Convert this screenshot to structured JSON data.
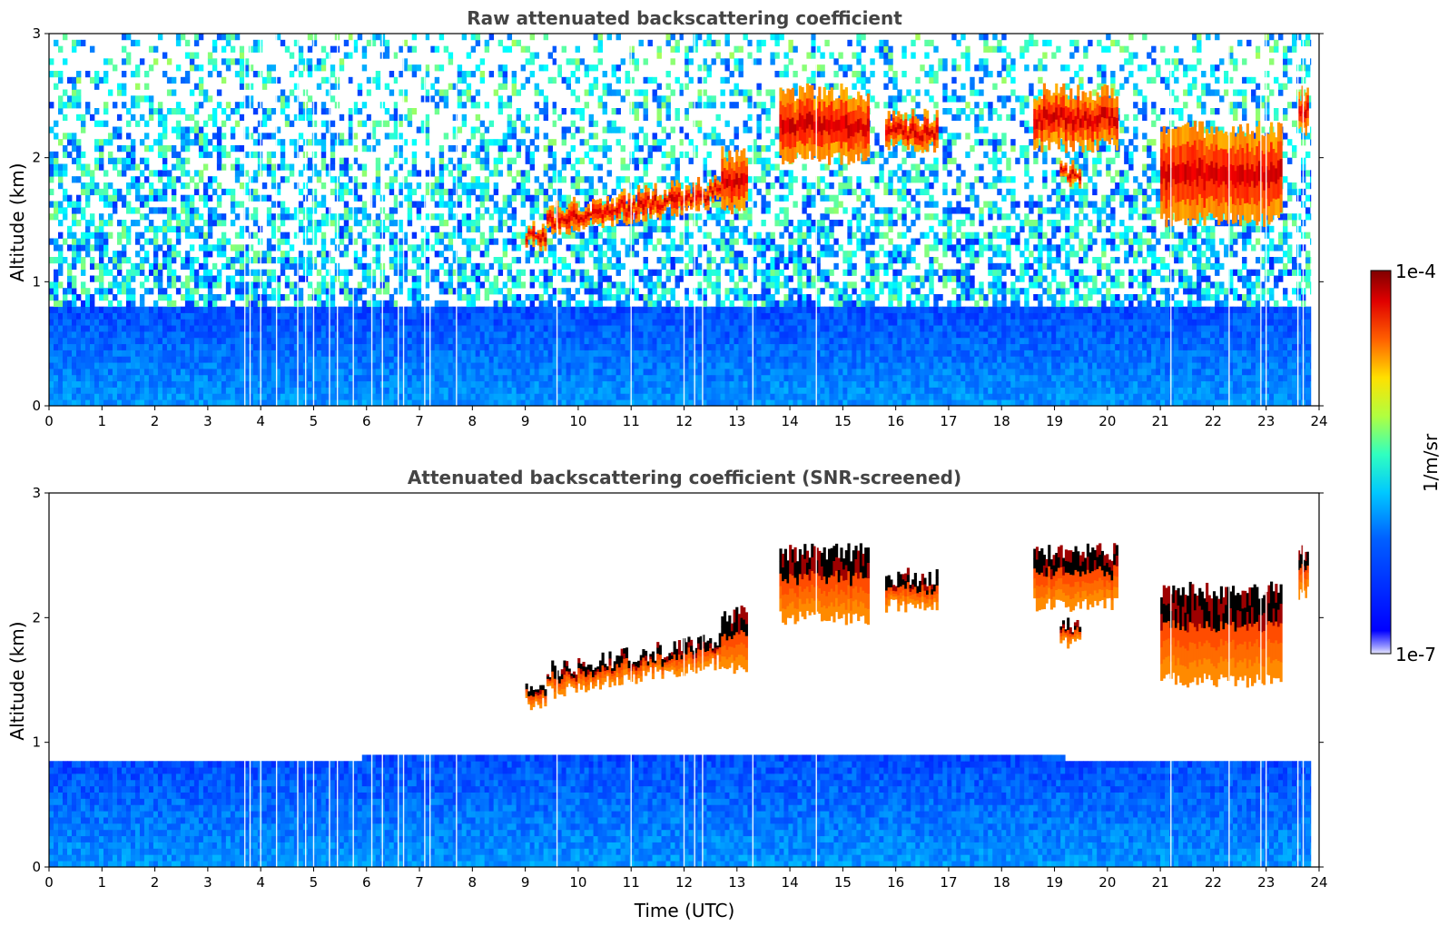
{
  "chart_data": [
    {
      "type": "heatmap",
      "title": "Raw attenuated backscattering coefficient",
      "xlabel": "",
      "ylabel": "Altitude (km)",
      "xlim": [
        0,
        24
      ],
      "ylim": [
        0,
        3
      ],
      "xticks": [
        "0",
        "1",
        "2",
        "3",
        "4",
        "5",
        "6",
        "7",
        "8",
        "9",
        "10",
        "11",
        "12",
        "13",
        "14",
        "15",
        "16",
        "17",
        "18",
        "19",
        "20",
        "21",
        "22",
        "23",
        "24"
      ],
      "yticks": [
        "0",
        "1",
        "2",
        "3"
      ],
      "screened": false,
      "boundary_layer_top_km": 0.8,
      "cloud_layers": [
        {
          "t_start": 9.0,
          "t_end": 9.4,
          "alt_bottom": 1.3,
          "alt_top": 1.5
        },
        {
          "t_start": 9.4,
          "t_end": 12.7,
          "alt_bottom": 1.4,
          "alt_top": 1.9
        },
        {
          "t_start": 12.7,
          "t_end": 13.2,
          "alt_bottom": 1.6,
          "alt_top": 2.1
        },
        {
          "t_start": 13.8,
          "t_end": 15.5,
          "alt_bottom": 2.0,
          "alt_top": 2.6
        },
        {
          "t_start": 15.8,
          "t_end": 16.8,
          "alt_bottom": 2.1,
          "alt_top": 2.4
        },
        {
          "t_start": 18.6,
          "t_end": 20.2,
          "alt_bottom": 2.1,
          "alt_top": 2.6
        },
        {
          "t_start": 19.1,
          "t_end": 19.5,
          "alt_bottom": 1.8,
          "alt_top": 2.0
        },
        {
          "t_start": 21.0,
          "t_end": 23.3,
          "alt_bottom": 1.5,
          "alt_top": 2.3
        },
        {
          "t_start": 23.6,
          "t_end": 23.8,
          "alt_bottom": 2.2,
          "alt_top": 2.6
        }
      ]
    },
    {
      "type": "heatmap",
      "title": "Attenuated backscattering coefficient (SNR-screened)",
      "xlabel": "Time (UTC)",
      "ylabel": "Altitude (km)",
      "xlim": [
        0,
        24
      ],
      "ylim": [
        0,
        3
      ],
      "xticks": [
        "0",
        "1",
        "2",
        "3",
        "4",
        "5",
        "6",
        "7",
        "8",
        "9",
        "10",
        "11",
        "12",
        "13",
        "14",
        "15",
        "16",
        "17",
        "18",
        "19",
        "20",
        "21",
        "22",
        "23",
        "24"
      ],
      "yticks": [
        "0",
        "1",
        "2",
        "3"
      ],
      "screened": true,
      "boundary_layer_top_km": 0.9
    }
  ],
  "colorbar": {
    "label": "1/m/sr",
    "max_label": "1e-4",
    "min_label": "1e-7",
    "scale": "log",
    "range": [
      1e-07,
      0.0001
    ],
    "colormap": "jet"
  }
}
